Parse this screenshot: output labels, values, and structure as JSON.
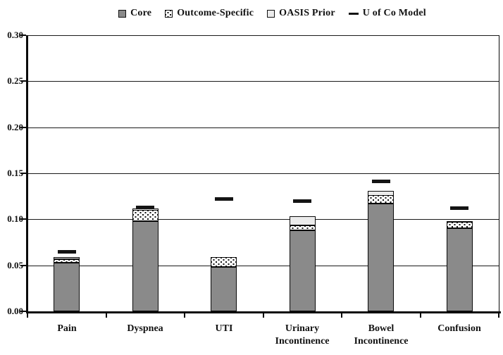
{
  "chart": {
    "legend": [
      {
        "label": "Core",
        "swatch": "core"
      },
      {
        "label": "Outcome-Specific",
        "swatch": "outcome"
      },
      {
        "label": "OASIS Prior",
        "swatch": "oasis"
      },
      {
        "label": "U of Co Model",
        "swatch": "model"
      }
    ]
  },
  "chart_data": {
    "type": "bar",
    "stacked": true,
    "title": "",
    "xlabel": "",
    "ylabel": "",
    "categories": [
      "Pain",
      "Dyspnea",
      "UTI",
      "Urinary Incontinence",
      "Bowel Incontinence",
      "Confusion"
    ],
    "category_lines": [
      [
        "Pain"
      ],
      [
        "Dyspnea"
      ],
      [
        "UTI"
      ],
      [
        "Urinary",
        "Incontinence"
      ],
      [
        "Bowel",
        "Incontinence"
      ],
      [
        "Confusion"
      ]
    ],
    "series": [
      {
        "name": "Core",
        "render": "bar",
        "color": "#8a8a8a",
        "values": [
          0.053,
          0.098,
          0.048,
          0.088,
          0.117,
          0.09
        ]
      },
      {
        "name": "Outcome-Specific",
        "render": "bar",
        "pattern": "dots",
        "color": "#ffffff",
        "values": [
          0.004,
          0.012,
          0.011,
          0.005,
          0.009,
          0.007
        ]
      },
      {
        "name": "OASIS Prior",
        "render": "bar",
        "color": "#ebebeb",
        "values": [
          0.002,
          0.002,
          0.0,
          0.01,
          0.005,
          0.001
        ]
      },
      {
        "name": "U of Co Model",
        "render": "marker",
        "color": "#141414",
        "values": [
          0.065,
          0.113,
          0.122,
          0.12,
          0.141,
          0.112
        ]
      }
    ],
    "ylim": [
      0,
      0.3
    ],
    "ytick_step": 0.05,
    "ytick_labels": [
      "0.00",
      "0.05",
      "0.10",
      "0.15",
      "0.20",
      "0.25",
      "0.30"
    ],
    "grid": "horizontal",
    "legend_position": "top"
  }
}
